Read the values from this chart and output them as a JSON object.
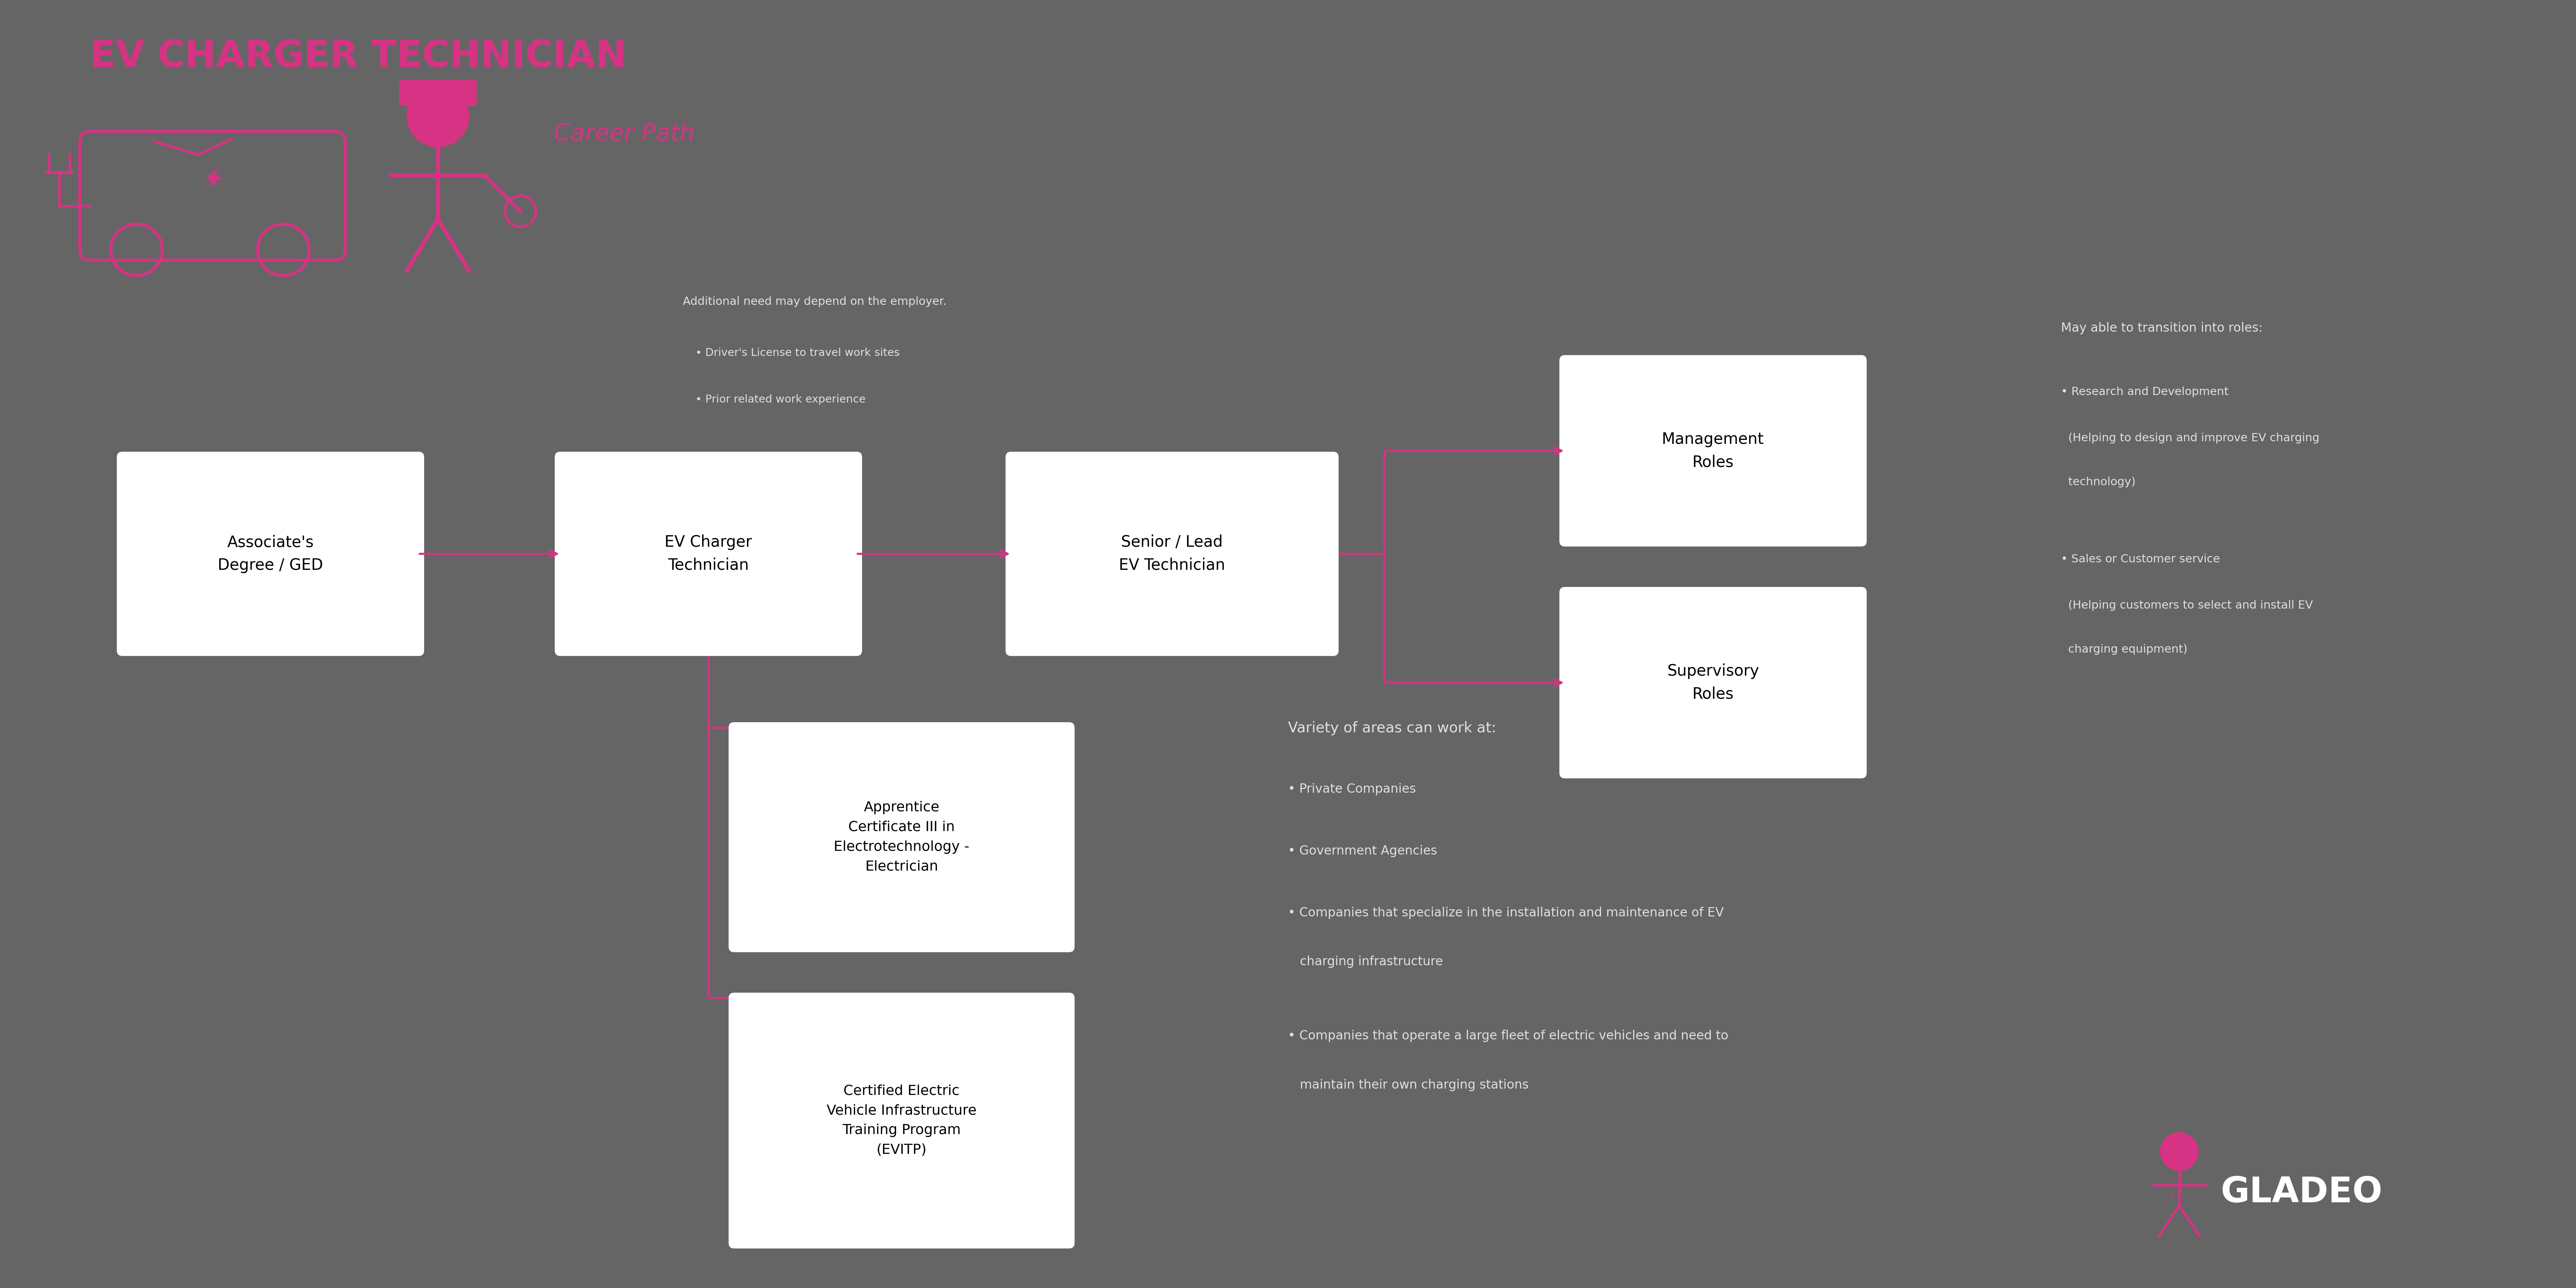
{
  "title": "EV CHARGER TECHNICIAN",
  "subtitle": "Career Path",
  "bg_color": "#656565",
  "pink": "#D63384",
  "white": "#FFFFFF",
  "dark_text": "#111111",
  "gray_text": "#E0E0E0",
  "box1_label": "Associate's\nDegree / GED",
  "box2_label": "EV Charger\nTechnician",
  "box3_label": "Senior / Lead\nEV Technician",
  "box4_label": "Management\nRoles",
  "box5_label": "Supervisory\nRoles",
  "box6_label": "Apprentice\nCertificate III in\nElectrotechnology -\nElectrician",
  "box7_label": "Certified Electric\nVehicle Infrastructure\nTraining Program\n(EVITP)",
  "note_title": "Additional need may depend on the employer.",
  "note_bullets": [
    "Driver's License to travel work sites",
    "Prior related work experience"
  ],
  "transition_title": "May able to transition into roles:",
  "transition_b1_line1": "• Research and Development",
  "transition_b1_line2": "  (Helping to design and improve EV charging",
  "transition_b1_line3": "  technology)",
  "transition_b2_line1": "• Sales or Customer service",
  "transition_b2_line2": "  (Helping customers to select and install EV",
  "transition_b2_line3": "  charging equipment)",
  "variety_title": "Variety of areas can work at:",
  "variety_b1": "Private Companies",
  "variety_b2": "Government Agencies",
  "variety_b3": "Companies that specialize in the installation and maintenance of EV",
  "variety_b3b": "   charging infrastructure",
  "variety_b4": "Companies that operate a large fleet of electric vehicles and need to",
  "variety_b4b": "   maintain their own charging stations",
  "gladeo_text": "GLADEO"
}
